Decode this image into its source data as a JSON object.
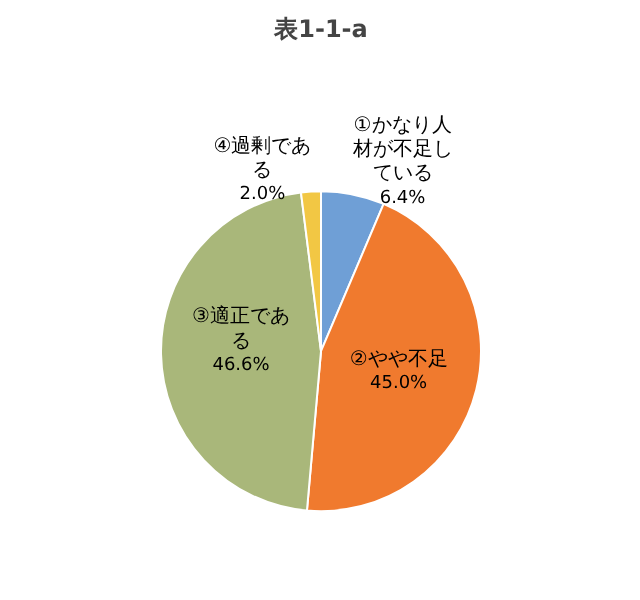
{
  "chart_data": {
    "type": "pie",
    "title": "表1-1-a",
    "categories": [
      "①かなり人材が不足している",
      "②やや不足",
      "③適正である",
      "④過剰である"
    ],
    "values": [
      6.4,
      45.0,
      46.6,
      2.0
    ],
    "colors": [
      "#6f9fd6",
      "#f07a2e",
      "#a9b77a",
      "#f2c744"
    ],
    "value_labels": [
      "6.4%",
      "45.0%",
      "46.6%",
      "2.0%"
    ],
    "legend": false
  }
}
